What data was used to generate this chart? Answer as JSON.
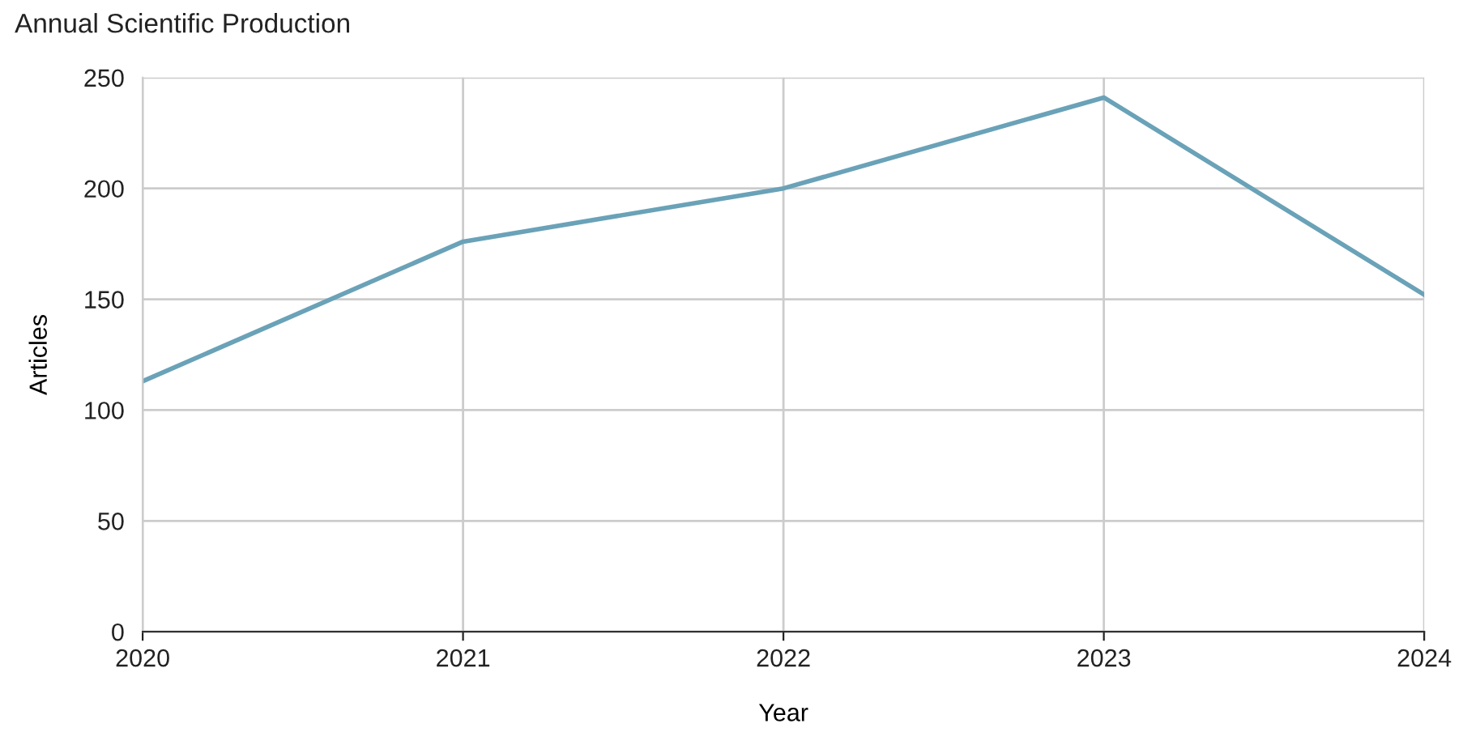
{
  "chart_data": {
    "type": "line",
    "title": "Annual Scientific Production",
    "xlabel": "Year",
    "ylabel": "Articles",
    "x": [
      2020,
      2021,
      2022,
      2023,
      2024
    ],
    "series": [
      {
        "color": "#6aa2b8",
        "values": [
          113,
          176,
          200,
          241,
          152
        ]
      }
    ],
    "xlim": [
      2020,
      2024
    ],
    "xticks": [
      2020,
      2021,
      2022,
      2023,
      2024
    ],
    "ylim": [
      0,
      250
    ],
    "yticks": [
      0,
      50,
      100,
      150,
      200,
      250
    ],
    "grid": true,
    "legend": false,
    "marker": "none",
    "line_style": "solid"
  }
}
